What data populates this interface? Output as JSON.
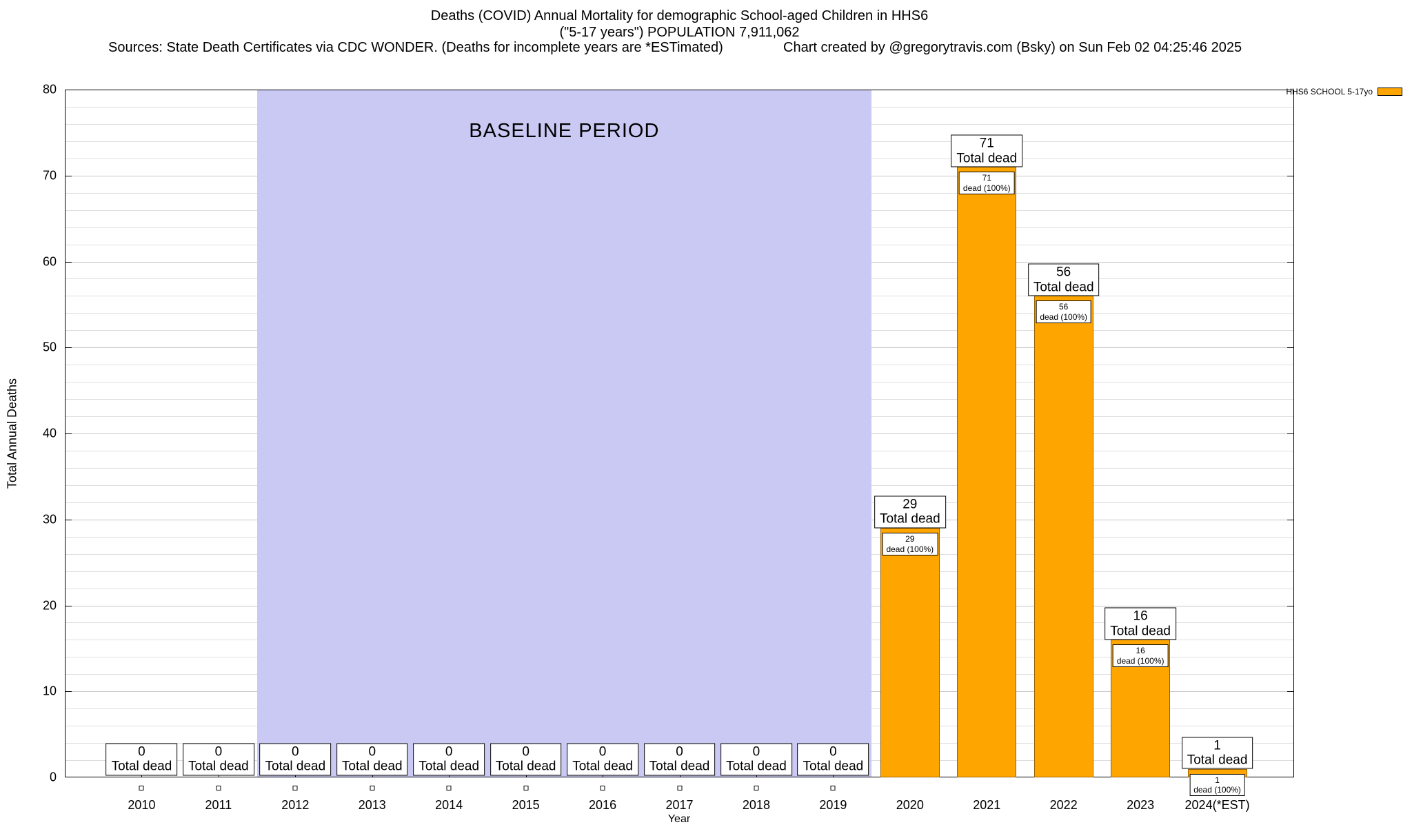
{
  "header": {
    "sources": "Sources: State Death Certificates via CDC WONDER. (Deaths for incomplete years are *ESTimated)",
    "credit": "Chart created by @gregorytravis.com (Bsky) on Sun Feb 02 04:25:46 2025"
  },
  "chart_data": {
    "type": "bar",
    "title": "Deaths (COVID) Annual Mortality for demographic School-aged Children in HHS6",
    "subtitle": "(\"5-17 years\") POPULATION 7,911,062",
    "xlabel": "Year",
    "ylabel": "Total Annual Deaths",
    "ylim": [
      0,
      80
    ],
    "grid": {
      "major_interval": 10,
      "minor_interval": 2,
      "major_color": "#c6c6c6",
      "minor_color": "#dedede"
    },
    "categories": [
      "2010",
      "2011",
      "2012",
      "2013",
      "2014",
      "2015",
      "2016",
      "2017",
      "2018",
      "2019",
      "2020",
      "2021",
      "2022",
      "2023",
      "2024(*EST)"
    ],
    "series": [
      {
        "name": "HHS6 SCHOOL 5-17yo",
        "color": "#FFA500",
        "border_color": "#9a6100",
        "values": [
          0,
          0,
          0,
          0,
          0,
          0,
          0,
          0,
          0,
          0,
          29,
          71,
          56,
          16,
          1
        ]
      }
    ],
    "baseline_region": {
      "label": "BASELINE PERIOD",
      "from_category": "2012",
      "to_category": "2019",
      "from_index": 2,
      "to_index": 9,
      "color": "#c9c9f4"
    },
    "annotations": {
      "total_label": "Total dead",
      "inner_label": "dead (100%)"
    },
    "legend_position": "top-right"
  }
}
